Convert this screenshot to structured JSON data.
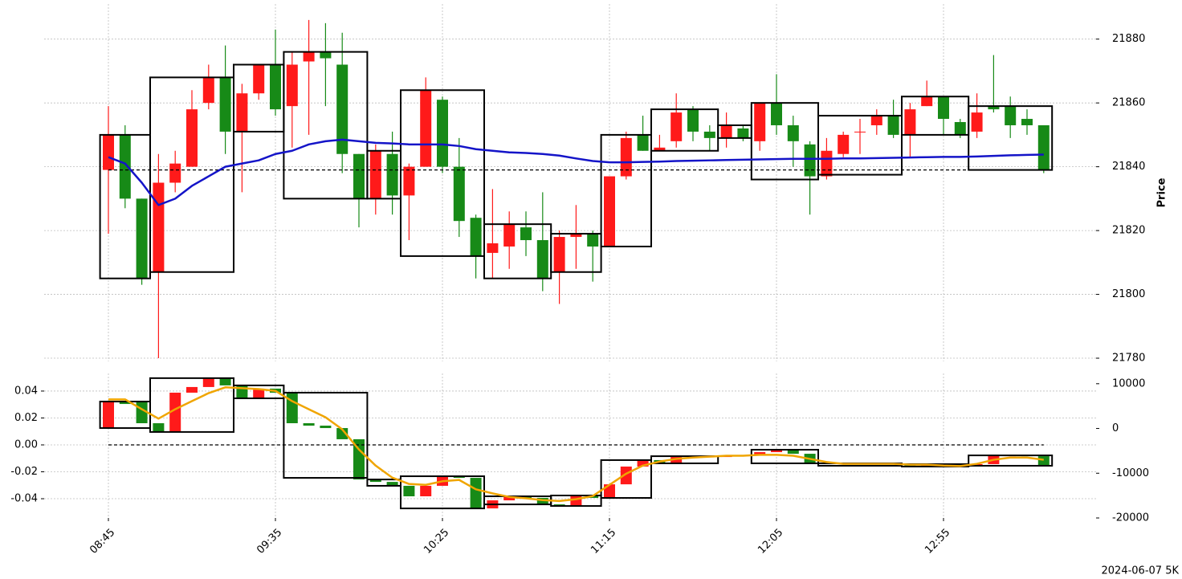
{
  "chart_data": [
    {
      "type": "candlestick",
      "open": [
        21839,
        21850,
        21830,
        21807,
        21835,
        21840,
        21860,
        21868,
        21851,
        21863,
        21872,
        21859,
        21873,
        21876,
        21872,
        21844,
        21830,
        21844,
        21831,
        21840,
        21861,
        21840,
        21824,
        21813,
        21815,
        21821,
        21817,
        21807,
        21818,
        21819,
        21815,
        21837,
        21850,
        21845,
        21848,
        21858,
        21851,
        21849,
        21852,
        21848,
        21860,
        21853,
        21847,
        21837,
        21844,
        21851,
        21853,
        21856,
        21850,
        21859,
        21862,
        21854,
        21851,
        21859,
        21859,
        21855,
        21853
      ],
      "high": [
        21859,
        21853,
        21830,
        21844,
        21845,
        21864,
        21872,
        21878,
        21866,
        21872,
        21883,
        21876,
        21886,
        21885,
        21882,
        21844,
        21847,
        21851,
        21841,
        21868,
        21862,
        21849,
        21825,
        21833,
        21826,
        21826,
        21832,
        21820,
        21828,
        21820,
        21837,
        21851,
        21856,
        21850,
        21863,
        21859,
        21853,
        21857,
        21853,
        21860,
        21869,
        21856,
        21848,
        21849,
        21851,
        21855,
        21858,
        21861,
        21860,
        21867,
        21862,
        21855,
        21863,
        21875,
        21862,
        21858,
        21853
      ],
      "low": [
        21819,
        21827,
        21803,
        21780,
        21832,
        21840,
        21858,
        21844,
        21832,
        21861,
        21856,
        21846,
        21850,
        21859,
        21838,
        21821,
        21825,
        21825,
        21817,
        21840,
        21838,
        21818,
        21805,
        21805,
        21808,
        21812,
        21801,
        21797,
        21808,
        21804,
        21815,
        21836,
        21845,
        21845,
        21846,
        21848,
        21845,
        21846,
        21848,
        21845,
        21850,
        21840,
        21825,
        21836,
        21843,
        21844,
        21850,
        21849,
        21843,
        21859,
        21850,
        21849,
        21849,
        21857,
        21849,
        21850,
        21838
      ],
      "close": [
        21850,
        21830,
        21805,
        21835,
        21841,
        21858,
        21868,
        21851,
        21863,
        21872,
        21858,
        21872,
        21876,
        21874,
        21844,
        21830,
        21845,
        21831,
        21840,
        21864,
        21840,
        21823,
        21812,
        21816,
        21822,
        21817,
        21805,
        21818,
        21819,
        21815,
        21837,
        21849,
        21845,
        21846,
        21857,
        21851,
        21849,
        21853,
        21849,
        21860,
        21853,
        21848,
        21837,
        21845,
        21850,
        21851,
        21856,
        21850,
        21858,
        21862,
        21855,
        21850,
        21857,
        21858,
        21853,
        21853,
        21839
      ],
      "up_color": "#ff1a1a",
      "down_color": "#178a17",
      "series": [
        {
          "color": "#1414c8",
          "values": [
            21843,
            21841,
            21835,
            21828,
            21830,
            21834,
            21837,
            21840,
            21841,
            21842,
            21844,
            21845,
            21847,
            21848,
            21848.5,
            21848,
            21847.5,
            21847.3,
            21847,
            21847,
            21847,
            21846.5,
            21845.5,
            21845,
            21844.5,
            21844.3,
            21844,
            21843.5,
            21842.6,
            21841.8,
            21841.4,
            21841.4,
            21841.5,
            21841.6,
            21841.8,
            21841.9,
            21842,
            21842.1,
            21842.2,
            21842.3,
            21842.4,
            21842.5,
            21842.5,
            21842.5,
            21842.6,
            21842.6,
            21842.7,
            21842.8,
            21842.9,
            21843,
            21843.1,
            21843.1,
            21843.2,
            21843.4,
            21843.6,
            21843.7,
            21843.8
          ]
        }
      ],
      "hline": 21839,
      "boxes": [
        {
          "start": 0,
          "end": 2,
          "top": 21850,
          "bottom": 21805
        },
        {
          "start": 3,
          "end": 7,
          "top": 21868,
          "bottom": 21807
        },
        {
          "start": 8,
          "end": 10,
          "top": 21872,
          "bottom": 21851
        },
        {
          "start": 11,
          "end": 15,
          "top": 21876,
          "bottom": 21830
        },
        {
          "start": 16,
          "end": 17,
          "top": 21845,
          "bottom": 21830
        },
        {
          "start": 18,
          "end": 22,
          "top": 21864,
          "bottom": 21812
        },
        {
          "start": 23,
          "end": 26,
          "top": 21822,
          "bottom": 21805
        },
        {
          "start": 27,
          "end": 29,
          "top": 21819,
          "bottom": 21807
        },
        {
          "start": 30,
          "end": 32,
          "top": 21850,
          "bottom": 21815
        },
        {
          "start": 33,
          "end": 36,
          "top": 21858,
          "bottom": 21845
        },
        {
          "start": 37,
          "end": 38,
          "top": 21853,
          "bottom": 21849
        },
        {
          "start": 39,
          "end": 42,
          "top": 21860,
          "bottom": 21836
        },
        {
          "start": 43,
          "end": 47,
          "top": 21856,
          "bottom": 21837.5
        },
        {
          "start": 48,
          "end": 51,
          "top": 21862,
          "bottom": 21850
        },
        {
          "start": 52,
          "end": 56,
          "top": 21859,
          "bottom": 21839
        }
      ],
      "ylim": [
        21779,
        21891
      ],
      "yticks": [
        21780,
        21800,
        21820,
        21840,
        21860,
        21880
      ],
      "y_axis": "right",
      "ylabel": "Price",
      "grid": true
    },
    {
      "type": "candlestick",
      "categories": [
        "08:45",
        null,
        null,
        null,
        null,
        null,
        null,
        null,
        null,
        null,
        "09:35",
        null,
        null,
        null,
        null,
        null,
        null,
        null,
        null,
        null,
        "10:25",
        null,
        null,
        null,
        null,
        null,
        null,
        null,
        null,
        null,
        "11:15",
        null,
        null,
        null,
        null,
        null,
        null,
        null,
        null,
        null,
        "12:05",
        null,
        null,
        null,
        null,
        null,
        null,
        null,
        null,
        null,
        "12:55",
        null,
        null,
        null,
        null,
        null,
        null
      ],
      "open": [
        0.0125,
        0.0322,
        0.0322,
        0.0161,
        0.0096,
        0.0388,
        0.043,
        0.0496,
        0.0442,
        0.0346,
        0.0418,
        0.0388,
        0.0161,
        0.0143,
        0.0125,
        0.0042,
        -0.0257,
        -0.0275,
        -0.0304,
        -0.0382,
        -0.0304,
        -0.0233,
        -0.0245,
        -0.0472,
        -0.0412,
        -0.0382,
        -0.0394,
        -0.0442,
        -0.0454,
        -0.0376,
        -0.0394,
        -0.0293,
        -0.0161,
        -0.0113,
        -0.0137,
        -0.009,
        -0.0084,
        -0.009,
        -0.0084,
        -0.0078,
        -0.0054,
        -0.0036,
        -0.0066,
        -0.0137,
        -0.0143,
        -0.0137,
        -0.0143,
        -0.0137,
        -0.0143,
        -0.0155,
        -0.0143,
        -0.0149,
        -0.0155,
        -0.0143,
        -0.0078,
        -0.0078,
        -0.0084
      ],
      "close": [
        0.0322,
        0.0304,
        0.0161,
        0.0096,
        0.0388,
        0.043,
        0.0496,
        0.0442,
        0.0346,
        0.0418,
        0.0388,
        0.0161,
        0.0143,
        0.0125,
        0.0042,
        -0.0257,
        -0.0275,
        -0.0304,
        -0.0382,
        -0.0304,
        -0.0233,
        -0.0245,
        -0.0472,
        -0.0412,
        -0.0382,
        -0.0394,
        -0.0442,
        -0.0454,
        -0.0376,
        -0.0394,
        -0.0293,
        -0.0161,
        -0.0113,
        -0.0137,
        -0.009,
        -0.0084,
        -0.009,
        -0.0084,
        -0.0078,
        -0.0054,
        -0.0036,
        -0.0066,
        -0.0137,
        -0.0143,
        -0.0137,
        -0.0143,
        -0.0137,
        -0.0143,
        -0.0155,
        -0.0143,
        -0.0149,
        -0.0155,
        -0.0143,
        -0.0078,
        -0.0078,
        -0.0084,
        -0.0155
      ],
      "up_color": "#ff1a1a",
      "down_color": "#178a17",
      "series": [
        {
          "color": "#f0a500",
          "axis": "y2",
          "values": [
            6500,
            6500,
            4300,
            2200,
            4300,
            6100,
            7900,
            9200,
            9000,
            8800,
            8400,
            6100,
            4300,
            2500,
            -200,
            -4700,
            -8300,
            -11000,
            -12400,
            -12600,
            -11800,
            -11500,
            -13600,
            -14500,
            -15300,
            -15600,
            -16000,
            -16200,
            -15800,
            -15100,
            -12600,
            -10100,
            -8300,
            -7400,
            -6800,
            -6500,
            -6300,
            -6100,
            -6100,
            -5900,
            -5900,
            -6100,
            -6800,
            -7500,
            -7900,
            -7900,
            -7900,
            -7900,
            -8100,
            -8100,
            -8300,
            -8400,
            -7900,
            -7000,
            -6500,
            -6500,
            -7000
          ]
        }
      ],
      "hline": 0,
      "boxes": [
        {
          "start": 0,
          "end": 2,
          "top": 0.0322,
          "bottom": 0.0125
        },
        {
          "start": 3,
          "end": 7,
          "top": 0.0496,
          "bottom": 0.0096
        },
        {
          "start": 8,
          "end": 10,
          "top": 0.0442,
          "bottom": 0.0346
        },
        {
          "start": 11,
          "end": 15,
          "top": 0.0388,
          "bottom": -0.0245
        },
        {
          "start": 16,
          "end": 17,
          "top": -0.0257,
          "bottom": -0.0304
        },
        {
          "start": 18,
          "end": 22,
          "top": -0.0233,
          "bottom": -0.0472
        },
        {
          "start": 23,
          "end": 26,
          "top": -0.0382,
          "bottom": -0.0442
        },
        {
          "start": 27,
          "end": 29,
          "top": -0.0376,
          "bottom": -0.0454
        },
        {
          "start": 30,
          "end": 32,
          "top": -0.0113,
          "bottom": -0.0394
        },
        {
          "start": 33,
          "end": 36,
          "top": -0.0084,
          "bottom": -0.0137
        },
        {
          "start": 39,
          "end": 42,
          "top": -0.0036,
          "bottom": -0.0137
        },
        {
          "start": 43,
          "end": 47,
          "top": -0.0137,
          "bottom": -0.0155
        },
        {
          "start": 48,
          "end": 51,
          "top": -0.0143,
          "bottom": -0.0161
        },
        {
          "start": 52,
          "end": 56,
          "top": -0.0078,
          "bottom": -0.0155
        }
      ],
      "ylim": [
        -0.0543,
        0.0531
      ],
      "yticks": [
        0.04,
        0.02,
        {
          "value": 0,
          "label": "0.00"
        },
        -0.02,
        -0.04
      ],
      "y_axis": "left",
      "y2lim": [
        -20000,
        12300
      ],
      "y2ticks": [
        10000,
        0,
        -10000,
        -20000
      ],
      "grid": true,
      "annotation": "2024-06-07 5K"
    }
  ]
}
